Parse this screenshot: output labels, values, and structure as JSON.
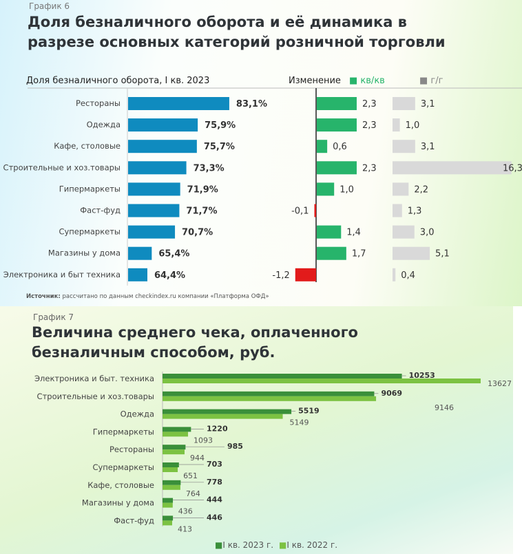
{
  "chart_data": [
    {
      "type": "bar",
      "label": "График 6",
      "title": "Доля безналичного оборота и её динамика в разрезе основных категорий розничной торговли",
      "share_header": "Доля безналичного оборота, I кв. 2023",
      "change_header": "Изменение",
      "series": [
        {
          "name": "кв/кв",
          "color": "#27b46b"
        },
        {
          "name": "г/г",
          "color": "#777777"
        }
      ],
      "categories": [
        "Рестораны",
        "Одежда",
        "Кафе, столовые",
        "Строительные и хоз.товары",
        "Гипермаркеты",
        "Фаст-фуд",
        "Супермаркеты",
        "Магазины у дома",
        "Электроника и быт техника"
      ],
      "share": [
        83.1,
        75.9,
        75.7,
        73.3,
        71.9,
        71.7,
        70.7,
        65.4,
        64.4
      ],
      "share_labels": [
        "83,1%",
        "75,9%",
        "75,7%",
        "73,3%",
        "71,9%",
        "71,7%",
        "70,7%",
        "65,4%",
        "64,4%"
      ],
      "qoq": [
        2.3,
        2.3,
        0.6,
        2.3,
        1.0,
        -0.1,
        1.4,
        1.7,
        -1.2
      ],
      "qoq_labels": [
        "2,3",
        "2,3",
        "0,6",
        "2,3",
        "1,0",
        "-0,1",
        "1,4",
        "1,7",
        "-1,2"
      ],
      "yoy": [
        3.1,
        1.0,
        3.1,
        16.3,
        2.2,
        1.3,
        3.0,
        5.1,
        0.4
      ],
      "yoy_labels": [
        "3,1",
        "1,0",
        "3,1",
        "16,3",
        "2,2",
        "1,3",
        "3,0",
        "5,1",
        "0,4"
      ],
      "colors": {
        "share": "#0f8bbf",
        "qoq_pos": "#27b46b",
        "qoq_neg": "#e21b1b",
        "yoy": "#d9d9d9"
      },
      "source_bold": "Источник:",
      "source": "рассчитано по данным checkindex.ru компании «Платформа ОФД»"
    },
    {
      "type": "bar",
      "label": "График 7",
      "title": "Величина среднего чека, оплаченного безналичным способом, руб.",
      "categories": [
        "Электроника и быт. техника",
        "Строительные и хоз.товары",
        "Одежда",
        "Гипермаркеты",
        "Рестораны",
        "Супермаркеты",
        "Кафе, столовые",
        "Магазины у дома",
        "Фаст-фуд"
      ],
      "series": [
        {
          "name": "I кв. 2023 г.",
          "color": "#3a8f3a",
          "values": [
            10253,
            9069,
            5519,
            1220,
            985,
            703,
            778,
            444,
            446
          ]
        },
        {
          "name": "I кв. 2022 г.",
          "color": "#7cc242",
          "values": [
            13627,
            9146,
            5149,
            1093,
            944,
            651,
            764,
            436,
            413
          ]
        }
      ]
    }
  ]
}
